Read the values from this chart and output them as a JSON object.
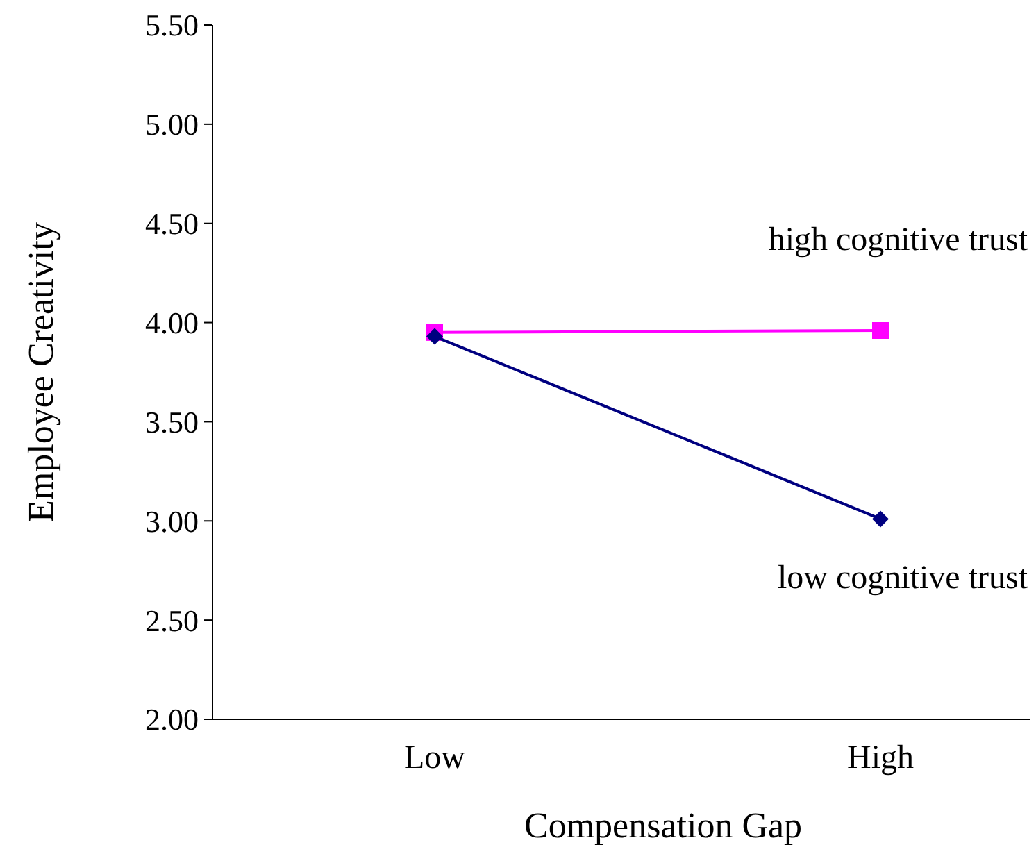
{
  "chart_data": {
    "type": "line",
    "xlabel": "Compensation Gap",
    "ylabel": "Employee Creativity",
    "categories": [
      "Low",
      "High"
    ],
    "series": [
      {
        "name": "high cognitive trust",
        "color": "#ff00ff",
        "marker": "square",
        "values": [
          3.95,
          3.96
        ]
      },
      {
        "name": "low cognitive trust",
        "color": "#000080",
        "marker": "diamond",
        "values": [
          3.93,
          3.01
        ]
      }
    ],
    "ylim": [
      2,
      5.5
    ],
    "yticks": [
      {
        "value": 2,
        "label": "2.00"
      },
      {
        "value": 2.5,
        "label": "2.50"
      },
      {
        "value": 3,
        "label": "3.00"
      },
      {
        "value": 3.5,
        "label": "3.50"
      },
      {
        "value": 4,
        "label": "4.00"
      },
      {
        "value": 4.5,
        "label": "4.50"
      },
      {
        "value": 5,
        "label": "5.00"
      },
      {
        "value": 5.5,
        "label": "5.50"
      }
    ],
    "grid": false
  }
}
